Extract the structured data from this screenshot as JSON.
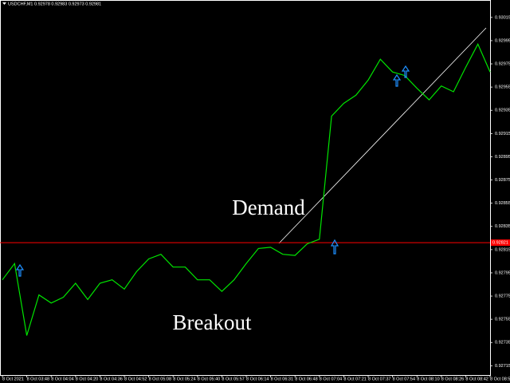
{
  "chart_data": {
    "type": "line",
    "title": "USDCHF,M1  0.92978 0.92983 0.92973 0.92981",
    "categories": [
      "8 Oct 2021",
      null,
      "8 Oct 03:48",
      null,
      "8 Oct 04:04",
      null,
      "8 Oct 04:20",
      null,
      "8 Oct 04:36",
      null,
      "8 Oct 04:52",
      null,
      "8 Oct 05:08",
      null,
      "8 Oct 05:24",
      null,
      "8 Oct 05:40",
      null,
      "8 Oct 05:57",
      null,
      "8 Oct 06:14",
      null,
      "8 Oct 06:31",
      null,
      "8 Oct 06:48",
      null,
      "8 Oct 07:04",
      null,
      "8 Oct 07:21",
      null,
      "8 Oct 07:37",
      null,
      "8 Oct 07:54",
      null,
      "8 Oct 08:10",
      null,
      "8 Oct 08:26",
      null,
      "8 Oct 08:42",
      null,
      "8 Oct 08:58"
    ],
    "values": [
      0.92789,
      0.92803,
      0.92741,
      0.92776,
      0.92769,
      0.92774,
      0.92786,
      0.92772,
      0.92786,
      0.92789,
      0.92781,
      0.92796,
      0.92807,
      0.92811,
      0.928,
      0.928,
      0.92789,
      0.92789,
      0.92779,
      0.92789,
      0.92803,
      0.92816,
      0.92817,
      0.92811,
      0.9281,
      0.9282,
      0.92824,
      0.9293,
      0.92941,
      0.92948,
      0.92961,
      0.92979,
      0.92968,
      0.92965,
      0.92954,
      0.92944,
      0.92956,
      0.92951,
      0.92972,
      0.92992,
      0.92968
    ],
    "color": "#00e600",
    "ylim": [
      0.92707,
      0.9303
    ],
    "yticks": [
      0.93015,
      0.92995,
      0.92975,
      0.92955,
      0.92935,
      0.92915,
      0.92895,
      0.92875,
      0.92855,
      0.92835,
      0.92815,
      0.92795,
      0.92775,
      0.92755,
      0.92735,
      0.92715
    ],
    "hline": {
      "value": 0.92821,
      "label": "0.92821",
      "color": "#ff0000"
    },
    "annotations": [
      "Demand",
      "Breakout"
    ]
  }
}
